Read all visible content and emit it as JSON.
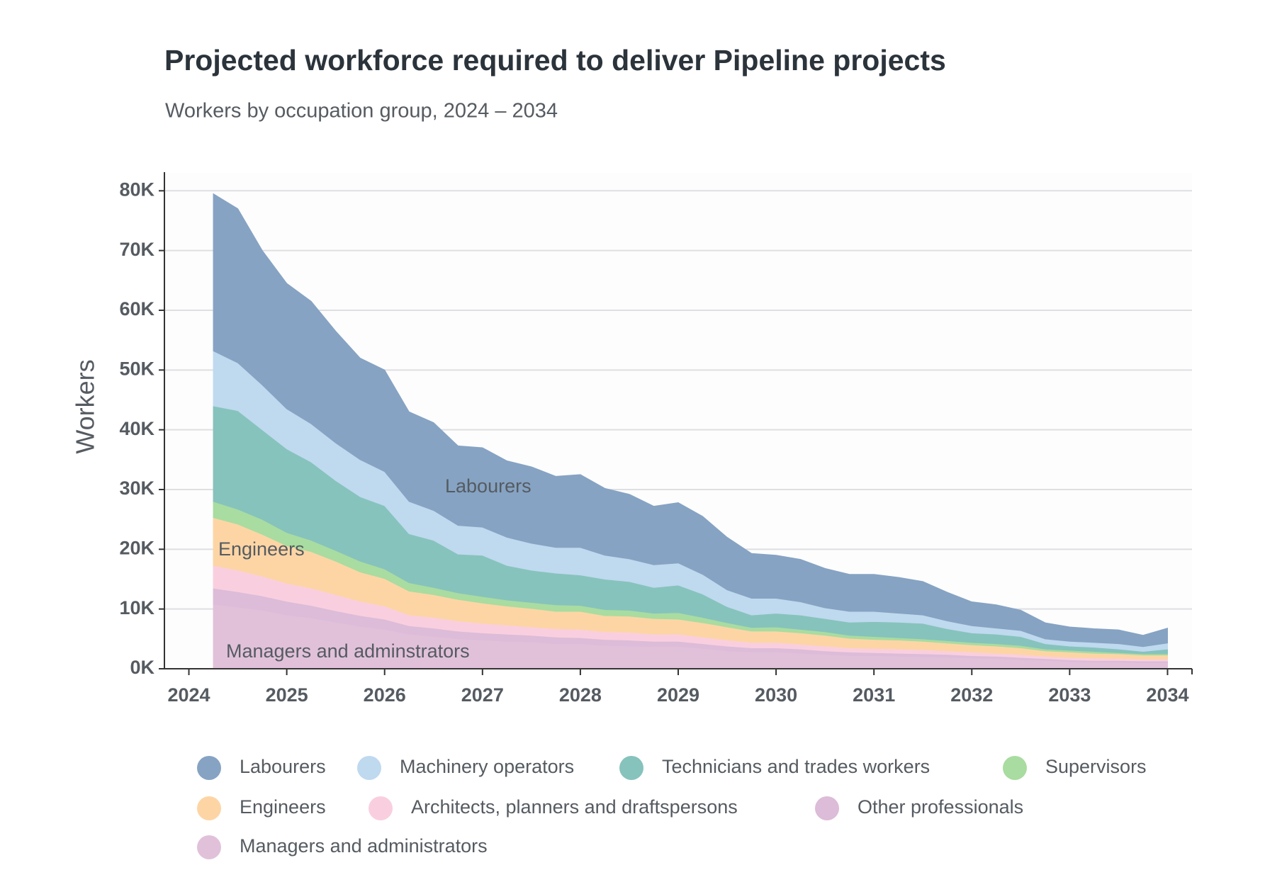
{
  "chart_data": {
    "type": "stacked_area",
    "title": "Projected workforce required to deliver Pipeline projects",
    "subtitle": "Workers by occupation group, 2024 – 2034",
    "y_label": "Workers",
    "x": [
      2024.25,
      2024.5,
      2024.75,
      2025,
      2025.25,
      2025.5,
      2025.75,
      2026,
      2026.25,
      2026.5,
      2026.75,
      2027,
      2027.25,
      2027.5,
      2027.75,
      2028,
      2028.25,
      2028.5,
      2028.75,
      2029,
      2029.25,
      2029.5,
      2029.75,
      2030,
      2030.25,
      2030.5,
      2030.75,
      2031,
      2031.25,
      2031.5,
      2031.75,
      2032,
      2032.25,
      2032.5,
      2032.75,
      2033,
      2033.25,
      2033.5,
      2033.75,
      2034
    ],
    "xlim": [
      2023.75,
      2034.25
    ],
    "xticks": [
      2024,
      2025,
      2026,
      2027,
      2028,
      2029,
      2030,
      2031,
      2032,
      2033,
      2034
    ],
    "ylim": [
      0,
      83000
    ],
    "yticks": [
      {
        "value": 0,
        "label": "0K"
      },
      {
        "value": 10000,
        "label": "10K"
      },
      {
        "value": 20000,
        "label": "20K"
      },
      {
        "value": 30000,
        "label": "30K"
      },
      {
        "value": 40000,
        "label": "40K"
      },
      {
        "value": 50000,
        "label": "50K"
      },
      {
        "value": 60000,
        "label": "60K"
      },
      {
        "value": 70000,
        "label": "70K"
      },
      {
        "value": 80000,
        "label": "80K"
      }
    ],
    "grid": true,
    "legend": "bottom",
    "annotations": [
      "Labourers",
      "Engineers",
      "Managers and adminstrators"
    ],
    "series": [
      {
        "name": "Labourers",
        "color": "#86a3c3",
        "values": [
          26300,
          25800,
          22500,
          21000,
          20500,
          18700,
          17000,
          17000,
          15000,
          14700,
          13300,
          13300,
          12800,
          12800,
          11900,
          12200,
          11200,
          10800,
          9800,
          10100,
          9700,
          8800,
          7500,
          7200,
          7100,
          6600,
          6200,
          6200,
          6000,
          5600,
          4800,
          4000,
          3900,
          3400,
          2700,
          2400,
          2300,
          2300,
          1900,
          2500
        ]
      },
      {
        "name": "Machinery operators",
        "color": "#bfd9ef",
        "values": [
          9200,
          8000,
          7500,
          6700,
          6400,
          6300,
          6200,
          5700,
          5400,
          5000,
          4800,
          4700,
          4700,
          4500,
          4300,
          4600,
          4000,
          3800,
          3800,
          3700,
          3300,
          2800,
          2800,
          2500,
          2200,
          1800,
          1800,
          1700,
          1500,
          1400,
          1300,
          1200,
          1000,
          1000,
          800,
          800,
          800,
          900,
          800,
          1000
        ]
      },
      {
        "name": "Technicians and trades workers",
        "color": "#86c3bc",
        "values": [
          16000,
          16500,
          15000,
          14000,
          13100,
          11700,
          10800,
          10600,
          8200,
          7900,
          6500,
          6900,
          5800,
          5400,
          5300,
          5100,
          5100,
          4800,
          4300,
          4600,
          3900,
          2700,
          2100,
          2300,
          2400,
          2200,
          2200,
          2500,
          2600,
          2600,
          2000,
          1600,
          1600,
          1500,
          900,
          700,
          700,
          600,
          400,
          800
        ]
      },
      {
        "name": "Supervisors",
        "color": "#a9dca0",
        "values": [
          2700,
          2500,
          2500,
          2200,
          1900,
          1800,
          1800,
          1600,
          1400,
          1200,
          1100,
          1100,
          1000,
          1000,
          1100,
          1000,
          1000,
          1000,
          900,
          1100,
          900,
          700,
          600,
          700,
          600,
          600,
          500,
          500,
          400,
          400,
          400,
          400,
          400,
          400,
          300,
          300,
          300,
          200,
          200,
          200
        ]
      },
      {
        "name": "Engineers",
        "color": "#fdd5a5",
        "values": [
          8000,
          7700,
          7000,
          6300,
          6100,
          5600,
          4900,
          4600,
          4000,
          3800,
          3600,
          3400,
          3200,
          3100,
          2900,
          3000,
          2700,
          2700,
          2600,
          2500,
          2400,
          2200,
          1900,
          1900,
          1900,
          1800,
          1600,
          1500,
          1500,
          1400,
          1300,
          1200,
          1200,
          1100,
          900,
          900,
          800,
          800,
          700,
          700
        ]
      },
      {
        "name": "Architects, planners and draftspersons",
        "color": "#f9cfdf",
        "values": [
          3800,
          3600,
          3300,
          3000,
          2900,
          2700,
          2400,
          2200,
          1800,
          1800,
          1700,
          1600,
          1500,
          1400,
          1400,
          1400,
          1300,
          1300,
          1200,
          1200,
          1100,
          1000,
          900,
          900,
          800,
          800,
          700,
          700,
          700,
          700,
          600,
          600,
          500,
          500,
          400,
          400,
          400,
          300,
          300,
          300
        ]
      },
      {
        "name": "Other professionals",
        "color": "#dcbcd8",
        "values": [
          2700,
          2600,
          2400,
          2300,
          2100,
          1900,
          1800,
          1700,
          1400,
          1400,
          1300,
          1200,
          1200,
          1100,
          1100,
          1000,
          1000,
          1000,
          900,
          900,
          800,
          800,
          700,
          700,
          700,
          600,
          600,
          500,
          500,
          500,
          500,
          400,
          400,
          400,
          300,
          300,
          300,
          300,
          300,
          300
        ]
      },
      {
        "name": "Managers and administrators",
        "color": "#e1c1da",
        "values": [
          10800,
          10300,
          9800,
          9000,
          8500,
          7800,
          7100,
          6600,
          5800,
          5400,
          5000,
          4800,
          4600,
          4500,
          4200,
          4200,
          3900,
          3800,
          3700,
          3700,
          3400,
          3000,
          2800,
          2800,
          2600,
          2400,
          2200,
          2200,
          2100,
          2000,
          1900,
          1800,
          1700,
          1500,
          1400,
          1200,
          1100,
          1100,
          1000,
          1000
        ]
      }
    ]
  }
}
